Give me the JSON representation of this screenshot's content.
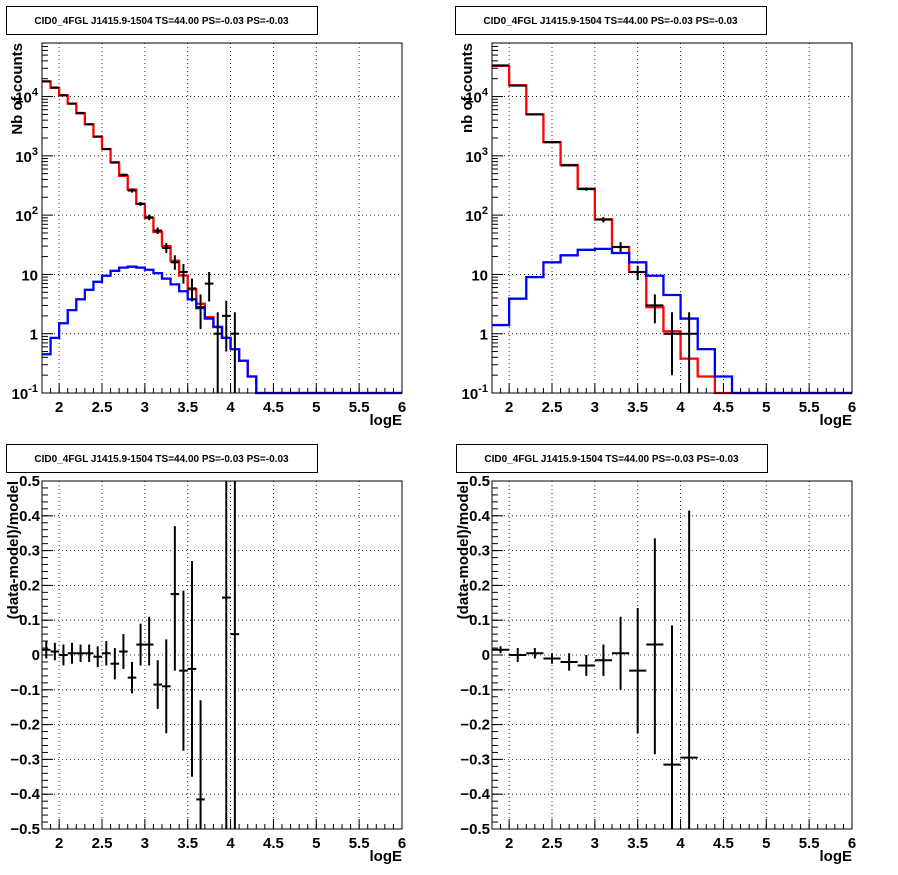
{
  "chart_data": [
    {
      "type": "line",
      "title": "CID0_4FGL J1415.9-1504 TS=44.00 PS=-0.03 PS=-0.03",
      "xlabel": "logE",
      "ylabel": "Nb of counts",
      "xlim": [
        1.8,
        6.0
      ],
      "ylim": [
        0.1,
        80000
      ],
      "yscale": "log",
      "grid": true,
      "x_ticks": [
        "2",
        "2.5",
        "3",
        "3.5",
        "4",
        "4.5",
        "5",
        "5.5",
        "6"
      ],
      "y_ticks": [
        "10-1",
        "1",
        "10",
        "102",
        "103",
        "104"
      ],
      "bin_edges": [
        1.8,
        1.9,
        2.0,
        2.1,
        2.2,
        2.3,
        2.4,
        2.5,
        2.6,
        2.7,
        2.8,
        2.9,
        3.0,
        3.1,
        3.2,
        3.3,
        3.4,
        3.5,
        3.6,
        3.7,
        3.8,
        3.9,
        4.0,
        4.1,
        4.2,
        4.3,
        4.4,
        4.5,
        4.6,
        4.7,
        4.8,
        4.9,
        5.0,
        5.1,
        5.2,
        5.3,
        5.4,
        5.5,
        5.6,
        5.7,
        5.8,
        5.9,
        6.0
      ],
      "series": [
        {
          "kind": "step",
          "color": "#ff0000",
          "values": [
            18000,
            14000,
            10500,
            7600,
            5200,
            3400,
            2100,
            1300,
            780,
            460,
            270,
            155,
            90,
            52,
            30,
            17,
            9.6,
            5.6,
            3.2,
            1.9,
            1.3,
            0.85,
            0.55,
            0.35,
            0.19,
            0.1,
            0.1,
            0.1,
            0.1,
            0.1,
            0.1,
            0.1,
            0.1,
            0.1,
            0.1,
            0.1,
            0.1,
            0.1,
            0.1,
            0.1,
            0.1,
            0.1
          ]
        },
        {
          "kind": "step",
          "color": "#0000ff",
          "values": [
            0.45,
            0.85,
            1.5,
            2.5,
            3.8,
            5.5,
            7.5,
            9.5,
            11.5,
            13,
            13.5,
            13,
            12,
            10.5,
            8.5,
            6.8,
            5.2,
            3.8,
            2.7,
            1.8,
            1.3,
            0.85,
            0.55,
            0.35,
            0.19,
            0.1,
            0.1,
            0.1,
            0.1,
            0.1,
            0.1,
            0.1,
            0.1,
            0.1,
            0.1,
            0.1,
            0.1,
            0.1,
            0.1,
            0.1,
            0.1,
            0.1
          ]
        },
        {
          "kind": "points",
          "color": "#000000",
          "x": [
            1.85,
            1.95,
            2.05,
            2.15,
            2.25,
            2.35,
            2.45,
            2.55,
            2.65,
            2.75,
            2.85,
            2.95,
            3.05,
            3.15,
            3.25,
            3.35,
            3.45,
            3.55,
            3.65,
            3.75,
            3.85,
            3.95,
            4.05
          ],
          "y": [
            18000,
            14200,
            10500,
            7600,
            5300,
            3400,
            2120,
            1300,
            770,
            480,
            260,
            155,
            92,
            55,
            28,
            16,
            11,
            5.8,
            2.8,
            7,
            1,
            2,
            1
          ],
          "ylo": [
            17700,
            13900,
            10300,
            7400,
            5200,
            3300,
            2080,
            1260,
            740,
            460,
            240,
            143,
            82,
            48,
            23,
            12,
            7,
            3.5,
            1.2,
            3.5,
            0.1,
            0.5,
            0.1
          ],
          "yhi": [
            18300,
            14500,
            10700,
            7800,
            5400,
            3500,
            2160,
            1340,
            800,
            500,
            280,
            167,
            102,
            62,
            34,
            21,
            15,
            8.5,
            4.6,
            11,
            2.3,
            3.6,
            2.3
          ]
        }
      ]
    },
    {
      "type": "line",
      "title": "CID0_4FGL J1415.9-1504 TS=44.00 PS=-0.03 PS=-0.03",
      "xlabel": "logE",
      "ylabel": "nb of counts",
      "xlim": [
        1.8,
        6.0
      ],
      "ylim": [
        0.1,
        80000
      ],
      "yscale": "log",
      "grid": true,
      "x_ticks": [
        "2",
        "2.5",
        "3",
        "3.5",
        "4",
        "4.5",
        "5",
        "5.5",
        "6"
      ],
      "y_ticks": [
        "10-1",
        "1",
        "10",
        "102",
        "103",
        "104"
      ],
      "bin_edges": [
        1.8,
        2.0,
        2.2,
        2.4,
        2.6,
        2.8,
        3.0,
        3.2,
        3.4,
        3.6,
        3.8,
        4.0,
        4.2,
        4.4,
        4.6,
        4.8,
        5.0,
        5.2,
        5.4,
        5.6,
        5.8,
        6.0
      ],
      "series": [
        {
          "kind": "step",
          "color": "#ff0000",
          "values": [
            33000,
            15500,
            5000,
            1700,
            700,
            280,
            85,
            29,
            11,
            2.8,
            1.1,
            0.38,
            0.19,
            0.1,
            0.1,
            0.1,
            0.1,
            0.1,
            0.1,
            0.1,
            0.1
          ]
        },
        {
          "kind": "step",
          "color": "#0000ff",
          "values": [
            1.4,
            3.9,
            9,
            16,
            21,
            26,
            27,
            23,
            16,
            9.5,
            4.5,
            1.8,
            0.55,
            0.19,
            0.1,
            0.1,
            0.1,
            0.1,
            0.1,
            0.1,
            0.1
          ]
        },
        {
          "kind": "points",
          "color": "#000000",
          "x": [
            1.9,
            2.1,
            2.3,
            2.5,
            2.7,
            2.9,
            3.1,
            3.3,
            3.5,
            3.7,
            3.9,
            4.1
          ],
          "y": [
            33500,
            15300,
            5000,
            1700,
            690,
            275,
            84,
            29,
            11,
            3,
            1,
            1
          ],
          "ylo": [
            33000,
            15000,
            4900,
            1650,
            660,
            258,
            75,
            24,
            8,
            1.5,
            0.2,
            0.1
          ],
          "yhi": [
            34000,
            15600,
            5100,
            1750,
            720,
            292,
            93,
            35,
            14,
            4.6,
            2.3,
            2.3
          ]
        }
      ]
    },
    {
      "type": "scatter",
      "title": "CID0_4FGL J1415.9-1504 TS=44.00 PS=-0.03 PS=-0.03",
      "xlabel": "logE",
      "ylabel": "(data-model)/model",
      "xlim": [
        1.8,
        6.0
      ],
      "ylim": [
        -0.5,
        0.5
      ],
      "grid": true,
      "x_ticks": [
        "2",
        "2.5",
        "3",
        "3.5",
        "4",
        "4.5",
        "5",
        "5.5",
        "6"
      ],
      "y_ticks": [
        "−0.5",
        "−0.4",
        "−0.3",
        "−0.2",
        "−0.1",
        "0",
        "0.1",
        "0.2",
        "0.3",
        "0.4",
        "0.5"
      ],
      "series": [
        {
          "kind": "points",
          "color": "#000000",
          "x": [
            1.85,
            1.95,
            2.05,
            2.15,
            2.25,
            2.35,
            2.45,
            2.55,
            2.65,
            2.75,
            2.85,
            2.95,
            3.05,
            3.15,
            3.25,
            3.35,
            3.45,
            3.55,
            3.65,
            3.95,
            4.05
          ],
          "y": [
            0.015,
            0.01,
            0.0,
            0.005,
            0.005,
            0.005,
            -0.005,
            0.005,
            -0.025,
            0.01,
            -0.065,
            0.03,
            0.03,
            -0.085,
            -0.09,
            0.175,
            -0.045,
            -0.04,
            -0.415,
            0.165,
            0.06
          ],
          "ylo": [
            -0.01,
            -0.015,
            -0.03,
            -0.025,
            -0.02,
            -0.02,
            -0.035,
            -0.03,
            -0.07,
            -0.04,
            -0.11,
            -0.03,
            -0.03,
            -0.155,
            -0.225,
            -0.045,
            -0.275,
            -0.35,
            -0.85,
            -0.85,
            -0.85
          ],
          "yhi": [
            0.04,
            0.035,
            0.03,
            0.035,
            0.03,
            0.03,
            0.025,
            0.04,
            0.02,
            0.06,
            -0.02,
            0.09,
            0.11,
            -0.015,
            0.045,
            0.37,
            0.185,
            0.27,
            -0.13,
            0.85,
            0.85
          ]
        }
      ]
    },
    {
      "type": "scatter",
      "title": "CID0_4FGL J1415.9-1504 TS=44.00 PS=-0.03 PS=-0.03",
      "xlabel": "logE",
      "ylabel": "(data-model)/model",
      "xlim": [
        1.8,
        6.0
      ],
      "ylim": [
        -0.5,
        0.5
      ],
      "grid": true,
      "x_ticks": [
        "2",
        "2.5",
        "3",
        "3.5",
        "4",
        "4.5",
        "5",
        "5.5",
        "6"
      ],
      "y_ticks": [
        "−0.5",
        "−0.4",
        "−0.3",
        "−0.2",
        "−0.1",
        "0",
        "0.1",
        "0.2",
        "0.3",
        "0.4",
        "0.5"
      ],
      "series": [
        {
          "kind": "points",
          "color": "#000000",
          "x": [
            1.9,
            2.1,
            2.3,
            2.5,
            2.7,
            2.9,
            3.1,
            3.3,
            3.5,
            3.7,
            3.9,
            4.1
          ],
          "y": [
            0.015,
            0.0,
            0.005,
            -0.01,
            -0.02,
            -0.03,
            -0.015,
            0.005,
            -0.045,
            0.03,
            -0.315,
            -0.295
          ],
          "ylo": [
            0.005,
            -0.02,
            -0.01,
            -0.025,
            -0.045,
            -0.06,
            -0.06,
            -0.1,
            -0.225,
            -0.285,
            -0.85,
            -0.85
          ],
          "yhi": [
            0.025,
            0.02,
            0.02,
            0.005,
            0.005,
            0.0,
            0.03,
            0.11,
            0.135,
            0.335,
            0.085,
            0.415
          ]
        }
      ]
    }
  ]
}
